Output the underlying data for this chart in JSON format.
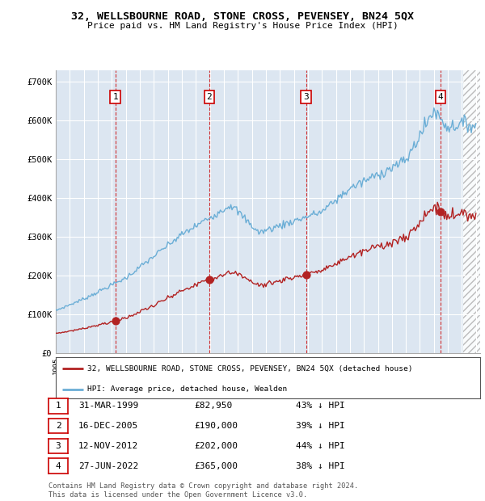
{
  "title": "32, WELLSBOURNE ROAD, STONE CROSS, PEVENSEY, BN24 5QX",
  "subtitle": "Price paid vs. HM Land Registry's House Price Index (HPI)",
  "xlim_start": 1995.0,
  "xlim_end": 2025.3,
  "ylim_min": 0,
  "ylim_max": 730000,
  "yticks": [
    0,
    100000,
    200000,
    300000,
    400000,
    500000,
    600000,
    700000
  ],
  "ytick_labels": [
    "£0",
    "£100K",
    "£200K",
    "£300K",
    "£400K",
    "£500K",
    "£600K",
    "£700K"
  ],
  "hpi_color": "#6baed6",
  "price_color": "#b22222",
  "background_color": "#dce6f1",
  "legend_line1": "32, WELLSBOURNE ROAD, STONE CROSS, PEVENSEY, BN24 5QX (detached house)",
  "legend_line2": "HPI: Average price, detached house, Wealden",
  "transactions": [
    {
      "num": 1,
      "date": "31-MAR-1999",
      "price": 82950,
      "pct": "43%",
      "x_year": 1999.25
    },
    {
      "num": 2,
      "date": "16-DEC-2005",
      "price": 190000,
      "pct": "39%",
      "x_year": 2005.96
    },
    {
      "num": 3,
      "date": "12-NOV-2012",
      "price": 202000,
      "pct": "44%",
      "x_year": 2012.87
    },
    {
      "num": 4,
      "date": "27-JUN-2022",
      "price": 365000,
      "pct": "38%",
      "x_year": 2022.49
    }
  ],
  "table_rows": [
    {
      "num": 1,
      "date": "31-MAR-1999",
      "price": "£82,950",
      "pct": "43% ↓ HPI"
    },
    {
      "num": 2,
      "date": "16-DEC-2005",
      "price": "£190,000",
      "pct": "39% ↓ HPI"
    },
    {
      "num": 3,
      "date": "12-NOV-2012",
      "price": "£202,000",
      "pct": "44% ↓ HPI"
    },
    {
      "num": 4,
      "date": "27-JUN-2022",
      "price": "£365,000",
      "pct": "38% ↓ HPI"
    }
  ],
  "footer": "Contains HM Land Registry data © Crown copyright and database right 2024.\nThis data is licensed under the Open Government Licence v3.0.",
  "hatch_start_x": 2024.08,
  "hatch_end_x": 2025.3
}
